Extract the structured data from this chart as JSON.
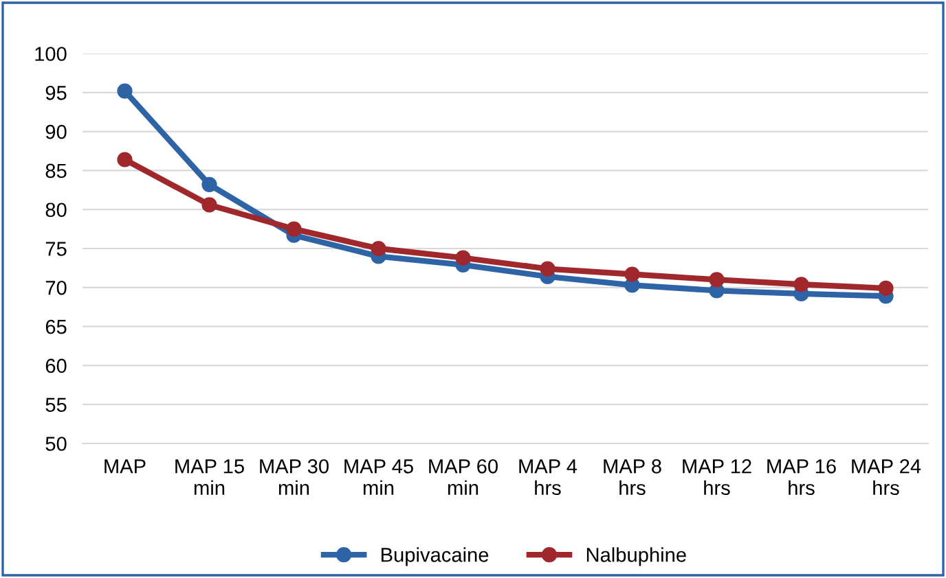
{
  "chart_data": {
    "type": "line",
    "categories": [
      "MAP",
      "MAP 15 min",
      "MAP 30 min",
      "MAP 45 min",
      "MAP 60 min",
      "MAP 4 hrs",
      "MAP 8 hrs",
      "MAP 12 hrs",
      "MAP 16 hrs",
      "MAP 24 hrs"
    ],
    "series": [
      {
        "name": "Bupivacaine",
        "color": "#2e63a6",
        "values": [
          95.2,
          83.2,
          76.7,
          74.0,
          72.9,
          71.4,
          70.3,
          69.6,
          69.2,
          68.9
        ]
      },
      {
        "name": "Nalbuphine",
        "color": "#a0282d",
        "values": [
          86.4,
          80.6,
          77.5,
          75.0,
          73.8,
          72.4,
          71.7,
          71.0,
          70.4,
          69.9
        ]
      }
    ],
    "ylim": [
      50,
      100
    ],
    "yticks": [
      50,
      55,
      60,
      65,
      70,
      75,
      80,
      85,
      90,
      95,
      100
    ],
    "grid": "y",
    "legend": "bottom",
    "marker": "circle",
    "line_style": "solid"
  }
}
